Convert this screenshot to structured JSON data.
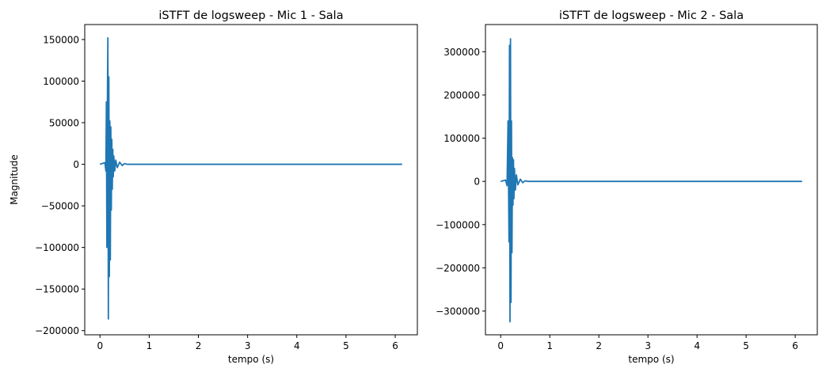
{
  "colors": {
    "line": "#1f77b4",
    "axes": "#000000",
    "background": "#ffffff"
  },
  "chart_data": [
    {
      "type": "line",
      "title": "iSTFT de logsweep - Mic 1 - Sala",
      "xlabel": "tempo (s)",
      "ylabel": "Magnitude",
      "xlim": [
        -0.31,
        6.45
      ],
      "ylim": [
        -205000,
        168000
      ],
      "xticks": [
        0,
        1,
        2,
        3,
        4,
        5,
        6
      ],
      "xtick_labels": [
        "0",
        "1",
        "2",
        "3",
        "4",
        "5",
        "6"
      ],
      "yticks": [
        -200000,
        -150000,
        -100000,
        -50000,
        0,
        50000,
        100000,
        150000
      ],
      "ytick_labels": [
        "−200000",
        "−150000",
        "−100000",
        "−50000",
        "0",
        "50000",
        "100000",
        "150000"
      ],
      "grid": false,
      "series": [
        {
          "x": [
            0.0,
            0.1,
            0.12,
            0.13,
            0.14,
            0.15,
            0.16,
            0.17,
            0.18,
            0.19,
            0.2,
            0.21,
            0.22,
            0.23,
            0.24,
            0.25,
            0.26,
            0.27,
            0.28,
            0.3,
            0.32,
            0.35,
            0.4,
            0.45,
            0.5,
            0.55,
            6.14
          ],
          "y": [
            0,
            2000,
            -8000,
            75000,
            -100000,
            70000,
            152000,
            -186000,
            105000,
            -135000,
            52000,
            -115000,
            45000,
            -55000,
            30000,
            -30000,
            18000,
            -15000,
            10000,
            -8000,
            5000,
            -4000,
            2500,
            -1500,
            800,
            0,
            0
          ]
        }
      ]
    },
    {
      "type": "line",
      "title": "iSTFT de logsweep - Mic 2 - Sala",
      "xlabel": "tempo (s)",
      "ylabel": "",
      "xlim": [
        -0.31,
        6.45
      ],
      "ylim": [
        -355000,
        363000
      ],
      "xticks": [
        0,
        1,
        2,
        3,
        4,
        5,
        6
      ],
      "xtick_labels": [
        "0",
        "1",
        "2",
        "3",
        "4",
        "5",
        "6"
      ],
      "yticks": [
        -300000,
        -200000,
        -100000,
        0,
        100000,
        200000,
        300000
      ],
      "ytick_labels": [
        "−300000",
        "−200000",
        "−100000",
        "0",
        "100000",
        "200000",
        "300000"
      ],
      "grid": false,
      "series": [
        {
          "x": [
            0.0,
            0.1,
            0.13,
            0.15,
            0.17,
            0.18,
            0.19,
            0.2,
            0.21,
            0.22,
            0.23,
            0.24,
            0.25,
            0.26,
            0.27,
            0.28,
            0.3,
            0.32,
            0.35,
            0.4,
            0.45,
            0.5,
            0.55,
            6.14
          ],
          "y": [
            0,
            3000,
            -10000,
            140000,
            -140000,
            315000,
            -325000,
            330000,
            -280000,
            140000,
            -165000,
            55000,
            -55000,
            50000,
            -40000,
            30000,
            -20000,
            15000,
            -8000,
            5000,
            -3000,
            1500,
            0,
            0
          ]
        }
      ]
    }
  ]
}
